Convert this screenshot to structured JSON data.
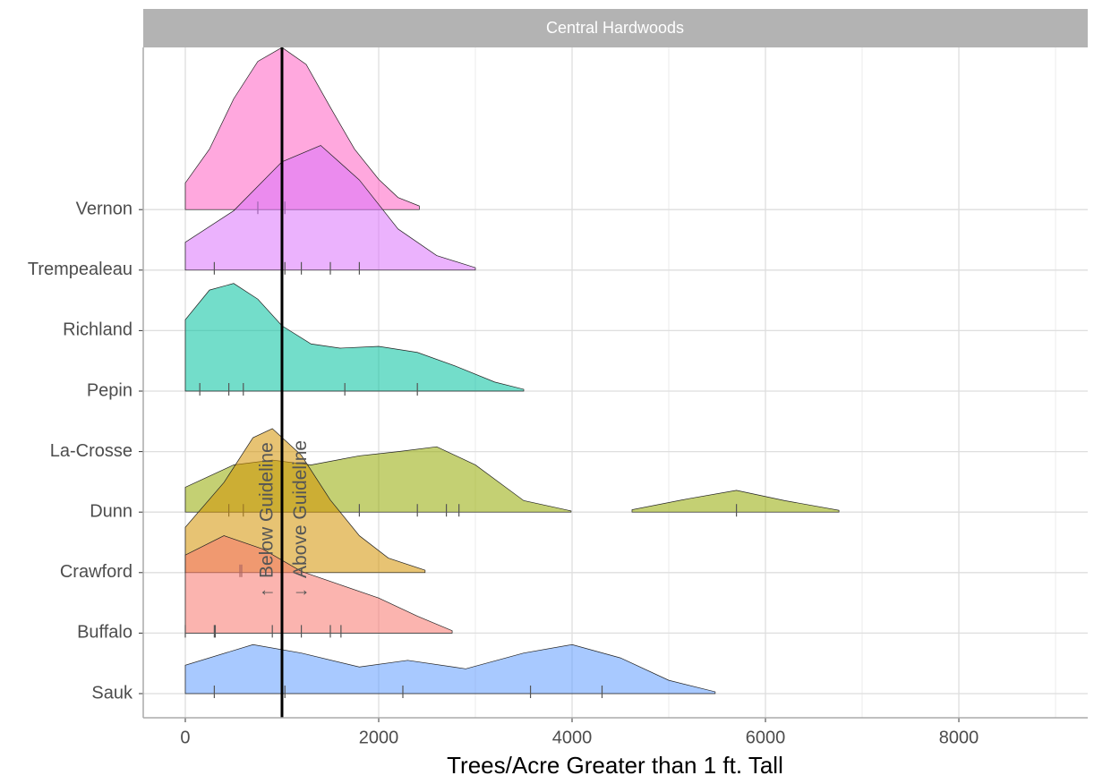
{
  "chart_data": {
    "type": "ridgeline",
    "facet": "Central Hardwoods",
    "x_label": "Trees/Acre Greater than 1 ft. Tall",
    "categories": [
      "Sauk",
      "Buffalo",
      "Crawford",
      "Dunn",
      "La-Crosse",
      "Pepin",
      "Richland",
      "Trempealeau",
      "Vernon"
    ],
    "xlim": [
      -435,
      9333
    ],
    "xticks": [
      0,
      2000,
      4000,
      6000,
      8000
    ],
    "xgrid_minor": [
      1000,
      3000,
      5000,
      7000,
      9000
    ],
    "grid": true,
    "guideline": 1000,
    "annotations": [
      {
        "text": "Below Guideline",
        "arrow": "←",
        "x": 850
      },
      {
        "text": "Above Guideline",
        "arrow": "→",
        "x": 1200
      }
    ],
    "series": [
      {
        "name": "Sauk",
        "color": "#619CFF",
        "x": [
          0,
          700,
          1200,
          1800,
          2300,
          2900,
          3500,
          4000,
          4500,
          5000,
          5480
        ],
        "density": [
          0.47,
          0.81,
          0.67,
          0.44,
          0.55,
          0.41,
          0.67,
          0.81,
          0.59,
          0.22,
          0.03
        ],
        "points": [
          300,
          1030,
          2250,
          3570,
          4310
        ]
      },
      {
        "name": "Buffalo",
        "color": "#F8766D",
        "x": [
          0,
          400,
          800,
          1200,
          1600,
          2000,
          2400,
          2760
        ],
        "density": [
          1.29,
          1.61,
          1.39,
          1.02,
          0.8,
          0.58,
          0.28,
          0.04
        ],
        "points": [
          0,
          300,
          310,
          900,
          1200,
          1500,
          1610
        ]
      },
      {
        "name": "Crawford",
        "color": "#D39200",
        "x": [
          0,
          400,
          700,
          900,
          1200,
          1500,
          1800,
          2100,
          2480
        ],
        "density": [
          0.75,
          1.49,
          2.23,
          2.38,
          1.94,
          1.2,
          0.61,
          0.24,
          0.04
        ],
        "points": [
          565,
          583
        ]
      },
      {
        "name": "Dunn",
        "color": "#93AA00",
        "x": [
          0,
          500,
          900,
          1300,
          1800,
          2200,
          2600,
          3000,
          3500,
          3990,
          null,
          4620,
          5200,
          5700,
          6200,
          6760
        ],
        "density": [
          0.41,
          0.78,
          0.86,
          0.78,
          0.93,
          1.0,
          1.08,
          0.78,
          0.19,
          0.02,
          null,
          0.04,
          0.22,
          0.36,
          0.19,
          0.03
        ],
        "points": [
          450,
          600,
          1800,
          2400,
          2700,
          2830,
          5700
        ]
      },
      {
        "name": "Pepin",
        "color": "#00C19F",
        "x": [
          0,
          250,
          500,
          750,
          1000,
          1300,
          1600,
          2000,
          2400,
          2800,
          3200,
          3500
        ],
        "density": [
          1.18,
          1.67,
          1.78,
          1.52,
          1.08,
          0.78,
          0.71,
          0.74,
          0.64,
          0.41,
          0.15,
          0.03
        ],
        "points": [
          150,
          450,
          600,
          1650,
          2400
        ]
      },
      {
        "name": "Trempealeau",
        "color": "#DB72FB",
        "x": [
          0,
          500,
          1000,
          1400,
          1800,
          2200,
          2600,
          3000
        ],
        "density": [
          0.46,
          0.98,
          1.79,
          2.06,
          1.49,
          0.68,
          0.24,
          0.04
        ],
        "points": [
          300,
          1030,
          1200,
          1500,
          1800
        ]
      },
      {
        "name": "Vernon",
        "color": "#FF61C3",
        "x": [
          0,
          250,
          500,
          750,
          1000,
          1250,
          1500,
          1750,
          2000,
          2200,
          2420
        ],
        "density": [
          0.44,
          1.0,
          1.83,
          2.45,
          2.68,
          2.4,
          1.69,
          1.0,
          0.5,
          0.2,
          0.06
        ],
        "points": [
          750,
          1030
        ]
      }
    ]
  }
}
